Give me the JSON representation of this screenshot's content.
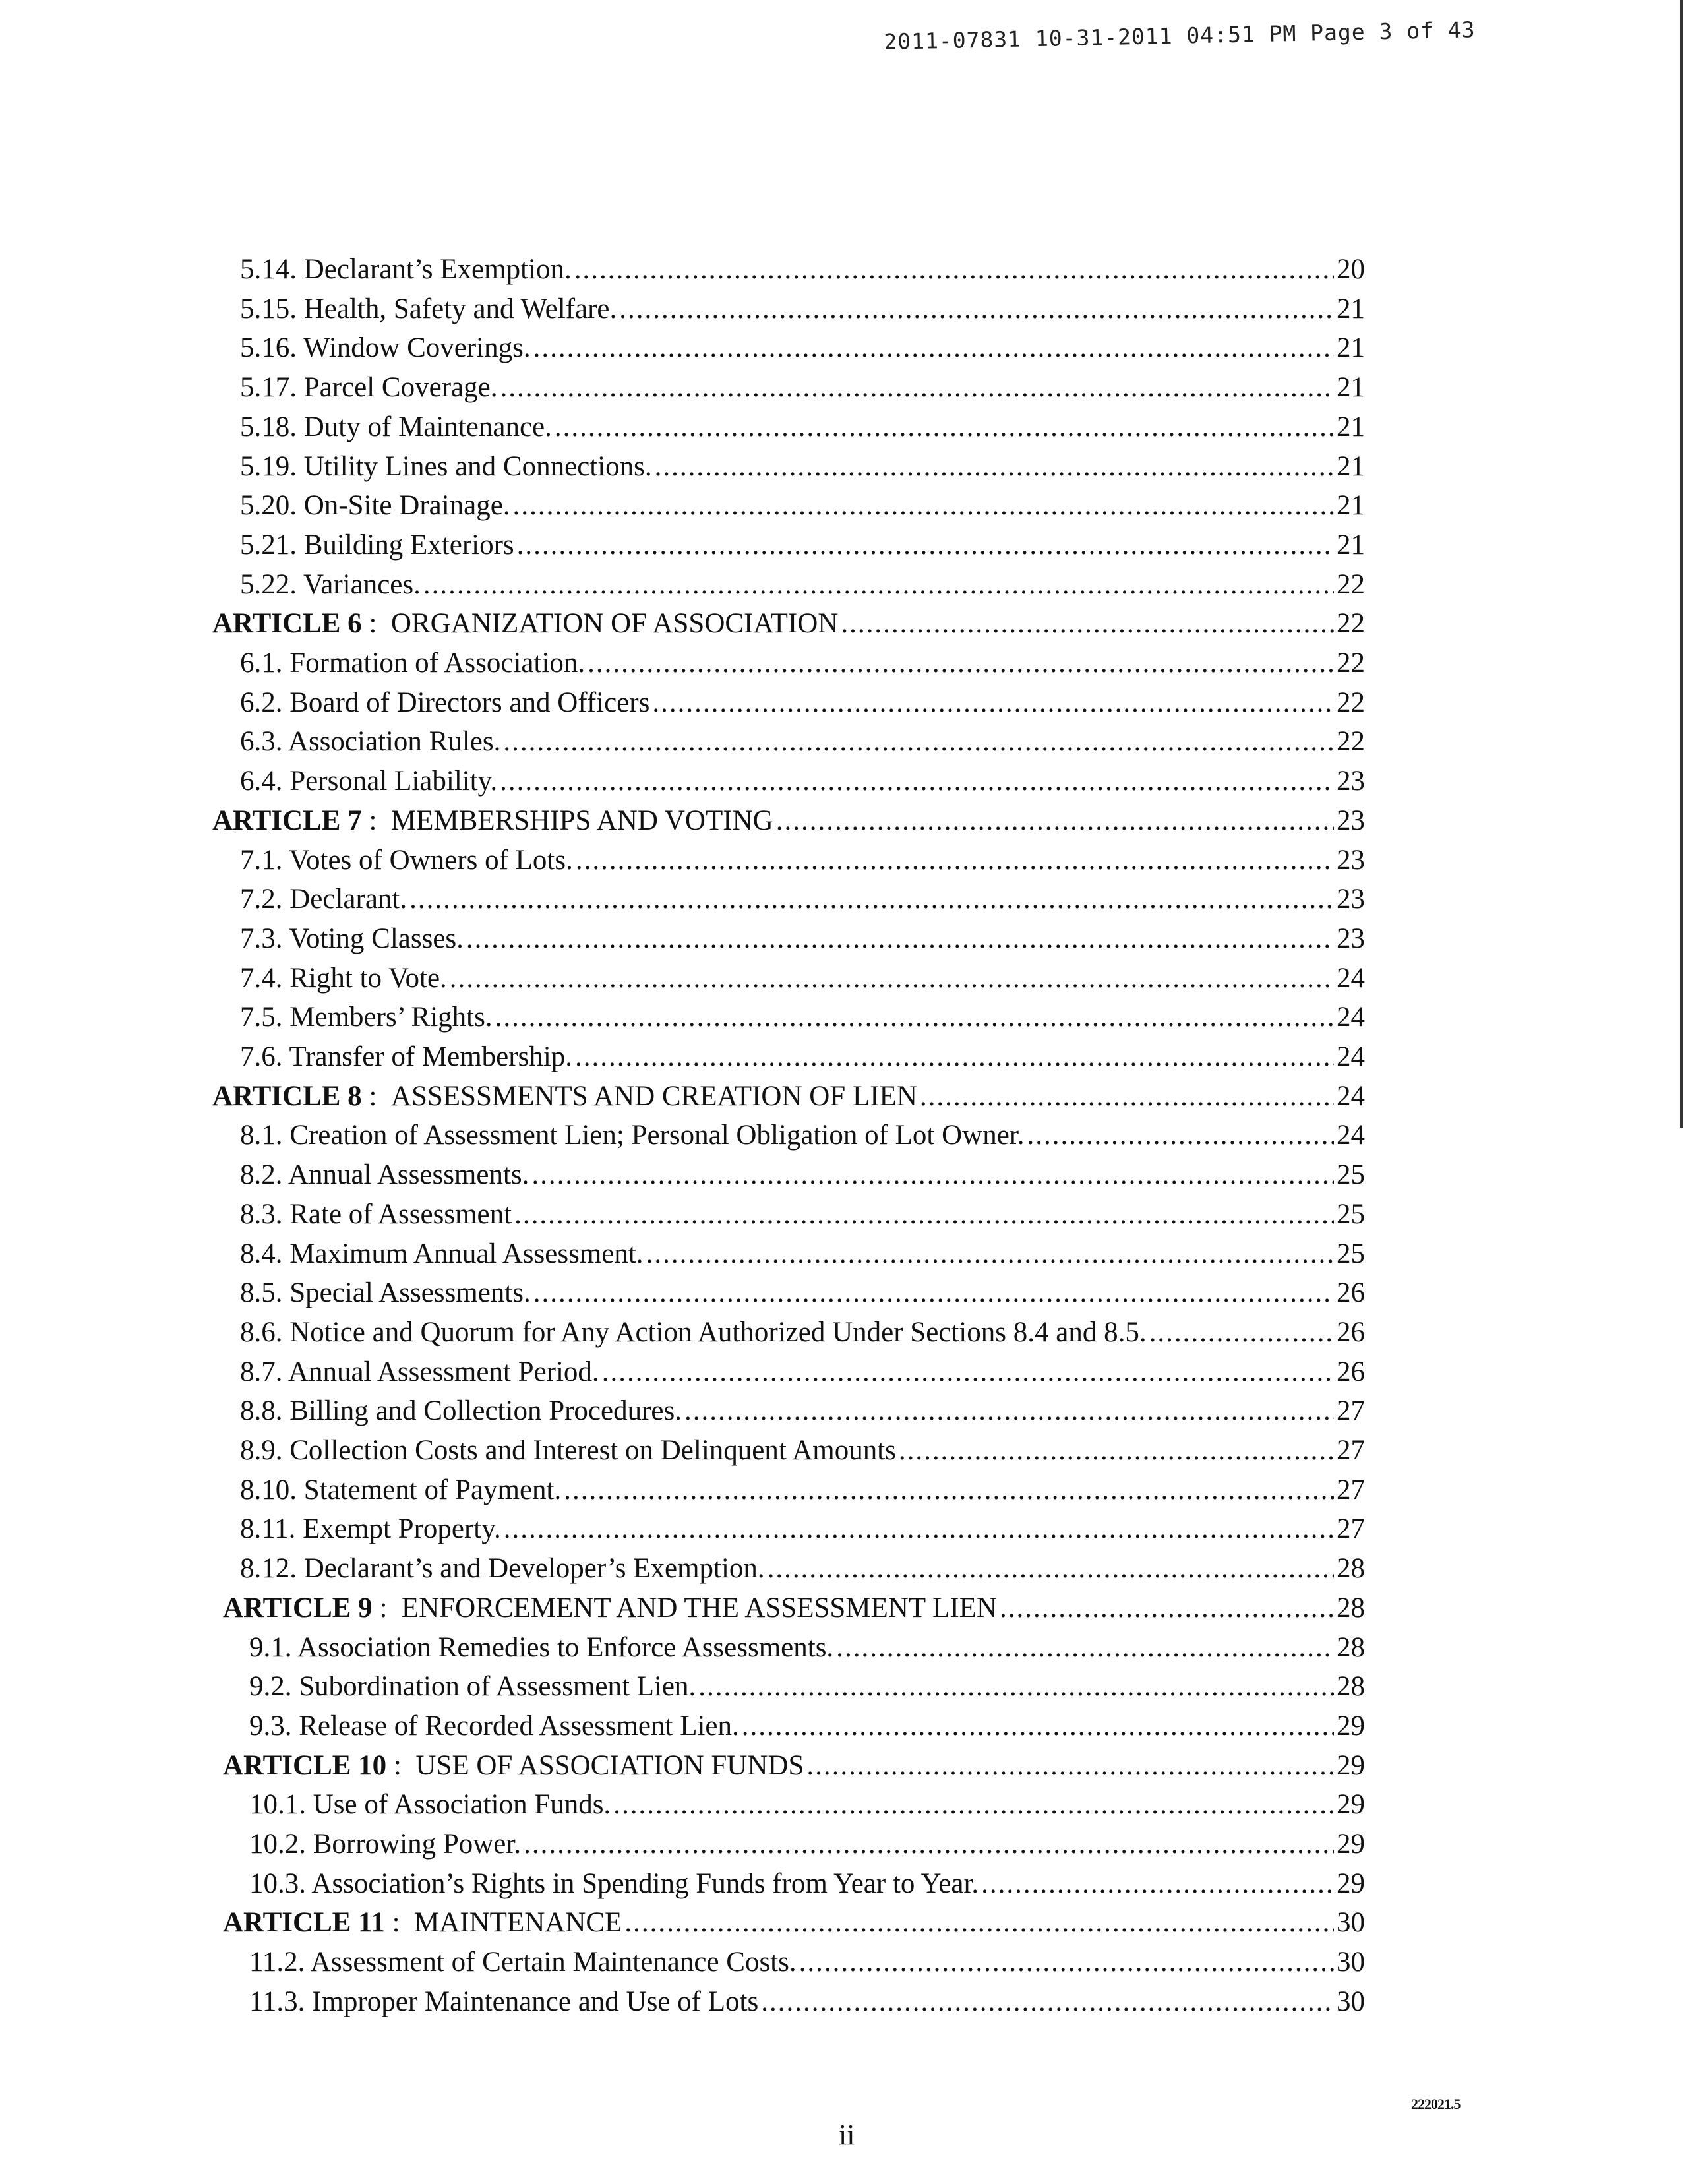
{
  "header": {
    "stamp": "2011-07831 10-31-2011 04:51 PM  Page 3 of 43"
  },
  "toc": [
    {
      "num": "5.14.",
      "title": "Declarant’s Exemption.",
      "page": "20",
      "type": "sec"
    },
    {
      "num": "5.15.",
      "title": "Health, Safety and Welfare.",
      "page": "21",
      "type": "sec"
    },
    {
      "num": "5.16.",
      "title": "Window Coverings.",
      "page": "21",
      "type": "sec"
    },
    {
      "num": "5.17.",
      "title": "Parcel Coverage.",
      "page": "21",
      "type": "sec"
    },
    {
      "num": "5.18.",
      "title": "Duty of Maintenance.",
      "page": "21",
      "type": "sec"
    },
    {
      "num": "5.19.",
      "title": "Utility Lines and Connections.",
      "page": "21",
      "type": "sec"
    },
    {
      "num": "5.20.",
      "title": "On-Site Drainage.",
      "page": "21",
      "type": "sec"
    },
    {
      "num": "5.21.",
      "title": "Building Exteriors",
      "page": "21",
      "type": "sec"
    },
    {
      "num": "5.22.",
      "title": "Variances.",
      "page": "22",
      "type": "sec"
    },
    {
      "num": "ARTICLE 6",
      "title": "ORGANIZATION OF ASSOCIATION",
      "page": "22",
      "type": "art"
    },
    {
      "num": "6.1.",
      "title": "Formation of Association.",
      "page": "22",
      "type": "sec"
    },
    {
      "num": "6.2.",
      "title": "Board of Directors and Officers",
      "page": "22",
      "type": "sec"
    },
    {
      "num": "6.3.",
      "title": "Association Rules.",
      "page": "22",
      "type": "sec"
    },
    {
      "num": "6.4.",
      "title": "Personal Liability.",
      "page": "23",
      "type": "sec"
    },
    {
      "num": "ARTICLE 7",
      "title": "MEMBERSHIPS AND VOTING",
      "page": "23",
      "type": "art"
    },
    {
      "num": "7.1.",
      "title": "Votes of Owners of Lots.",
      "page": "23",
      "type": "sec"
    },
    {
      "num": "7.2.",
      "title": "Declarant.",
      "page": "23",
      "type": "sec"
    },
    {
      "num": "7.3.",
      "title": "Voting Classes.",
      "page": "23",
      "type": "sec"
    },
    {
      "num": "7.4.",
      "title": "Right to Vote.",
      "page": "24",
      "type": "sec"
    },
    {
      "num": "7.5.",
      "title": "Members’ Rights.",
      "page": "24",
      "type": "sec"
    },
    {
      "num": "7.6.",
      "title": "Transfer of Membership.",
      "page": "24",
      "type": "sec"
    },
    {
      "num": "ARTICLE 8",
      "title": "ASSESSMENTS AND CREATION OF LIEN",
      "page": "24",
      "type": "art"
    },
    {
      "num": "8.1.",
      "title": "Creation of Assessment Lien; Personal Obligation of Lot Owner.",
      "page": "24",
      "type": "sec"
    },
    {
      "num": "8.2.",
      "title": "Annual Assessments.",
      "page": "25",
      "type": "sec"
    },
    {
      "num": "8.3.",
      "title": "Rate of Assessment",
      "page": "25",
      "type": "sec"
    },
    {
      "num": "8.4.",
      "title": "Maximum Annual Assessment.",
      "page": "25",
      "type": "sec"
    },
    {
      "num": "8.5.",
      "title": "Special Assessments.",
      "page": "26",
      "type": "sec"
    },
    {
      "num": "8.6.",
      "title": "Notice and Quorum for Any Action Authorized Under Sections 8.4 and 8.5.",
      "page": "26",
      "type": "sec"
    },
    {
      "num": "8.7.",
      "title": "Annual Assessment Period.",
      "page": "26",
      "type": "sec"
    },
    {
      "num": "8.8.",
      "title": "Billing and Collection Procedures.",
      "page": "27",
      "type": "sec"
    },
    {
      "num": "8.9.",
      "title": "Collection Costs and Interest on Delinquent Amounts",
      "page": "27",
      "type": "sec"
    },
    {
      "num": "8.10.",
      "title": "Statement of Payment.",
      "page": "27",
      "type": "sec"
    },
    {
      "num": "8.11.",
      "title": "Exempt Property.",
      "page": "27",
      "type": "sec"
    },
    {
      "num": "8.12.",
      "title": "Declarant’s and Developer’s Exemption.",
      "page": "28",
      "type": "sec"
    },
    {
      "num": "ARTICLE 9",
      "title": "ENFORCEMENT AND THE ASSESSMENT LIEN",
      "page": "28",
      "type": "art2"
    },
    {
      "num": "9.1.",
      "title": "Association Remedies to Enforce Assessments.",
      "page": "28",
      "type": "sec2"
    },
    {
      "num": "9.2.",
      "title": "Subordination of Assessment Lien.",
      "page": "28",
      "type": "sec2"
    },
    {
      "num": "9.3.",
      "title": "Release of Recorded Assessment Lien.",
      "page": "29",
      "type": "sec2"
    },
    {
      "num": "ARTICLE 10",
      "title": "USE OF ASSOCIATION FUNDS",
      "page": "29",
      "type": "art2"
    },
    {
      "num": "10.1.",
      "title": "Use of Association Funds.",
      "page": "29",
      "type": "sec2"
    },
    {
      "num": "10.2.",
      "title": "Borrowing Power.",
      "page": "29",
      "type": "sec2"
    },
    {
      "num": "10.3.",
      "title": "Association’s Rights in Spending Funds from Year to Year.",
      "page": "29",
      "type": "sec2"
    },
    {
      "num": "ARTICLE 11",
      "title": "MAINTENANCE",
      "page": "30",
      "type": "art2"
    },
    {
      "num": "11.2.",
      "title": "Assessment of Certain Maintenance Costs.",
      "page": "30",
      "type": "sec2"
    },
    {
      "num": "11.3.",
      "title": "Improper Maintenance and Use of Lots",
      "page": "30",
      "type": "sec2"
    }
  ],
  "footer": {
    "page_number": "ii",
    "doc_id": "222021.5"
  }
}
